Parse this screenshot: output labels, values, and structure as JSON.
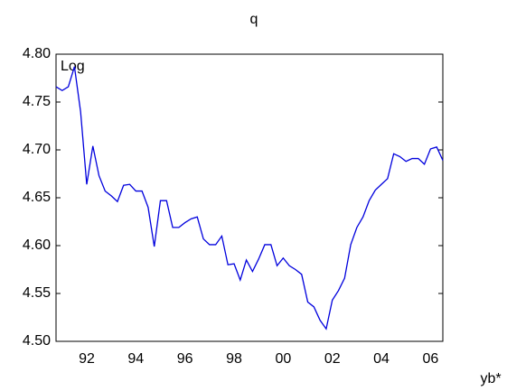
{
  "chart_data": {
    "type": "line",
    "title": "q",
    "annotation": "Log",
    "x_label": "yb*",
    "categories": [
      null,
      null,
      null,
      null,
      null,
      "92",
      null,
      null,
      null,
      null,
      null,
      null,
      null,
      "94",
      null,
      null,
      null,
      null,
      null,
      null,
      null,
      "96",
      null,
      null,
      null,
      null,
      null,
      null,
      null,
      "98",
      null,
      null,
      null,
      null,
      null,
      null,
      null,
      "00",
      null,
      null,
      null,
      null,
      null,
      null,
      null,
      "02",
      null,
      null,
      null,
      null,
      null,
      null,
      null,
      "04",
      null,
      null,
      null,
      null,
      null,
      null,
      null,
      "06",
      null,
      null
    ],
    "values": [
      4.766,
      4.762,
      4.766,
      4.787,
      4.74,
      4.664,
      4.704,
      4.673,
      4.657,
      4.652,
      4.646,
      4.663,
      4.664,
      4.657,
      4.657,
      4.64,
      4.599,
      4.647,
      4.647,
      4.619,
      4.619,
      4.624,
      4.628,
      4.63,
      4.607,
      4.601,
      4.601,
      4.61,
      4.58,
      4.581,
      4.564,
      4.585,
      4.573,
      4.586,
      4.601,
      4.601,
      4.579,
      4.587,
      4.579,
      4.575,
      4.57,
      4.541,
      4.536,
      4.522,
      4.513,
      4.543,
      4.553,
      4.566,
      4.601,
      4.619,
      4.63,
      4.647,
      4.658,
      4.664,
      4.67,
      4.696,
      4.693,
      4.688,
      4.691,
      4.691,
      4.685,
      4.701,
      4.703,
      4.689
    ],
    "color": "#0000dd",
    "ylim": [
      4.5,
      4.8
    ],
    "yticks": [
      {
        "value": 4.5,
        "label": "4.50"
      },
      {
        "value": 4.55,
        "label": "4.55"
      },
      {
        "value": 4.6,
        "label": "4.60"
      },
      {
        "value": 4.65,
        "label": "4.65"
      },
      {
        "value": 4.7,
        "label": "4.70"
      },
      {
        "value": 4.75,
        "label": "4.75"
      },
      {
        "value": 4.8,
        "label": "4.80"
      }
    ]
  }
}
